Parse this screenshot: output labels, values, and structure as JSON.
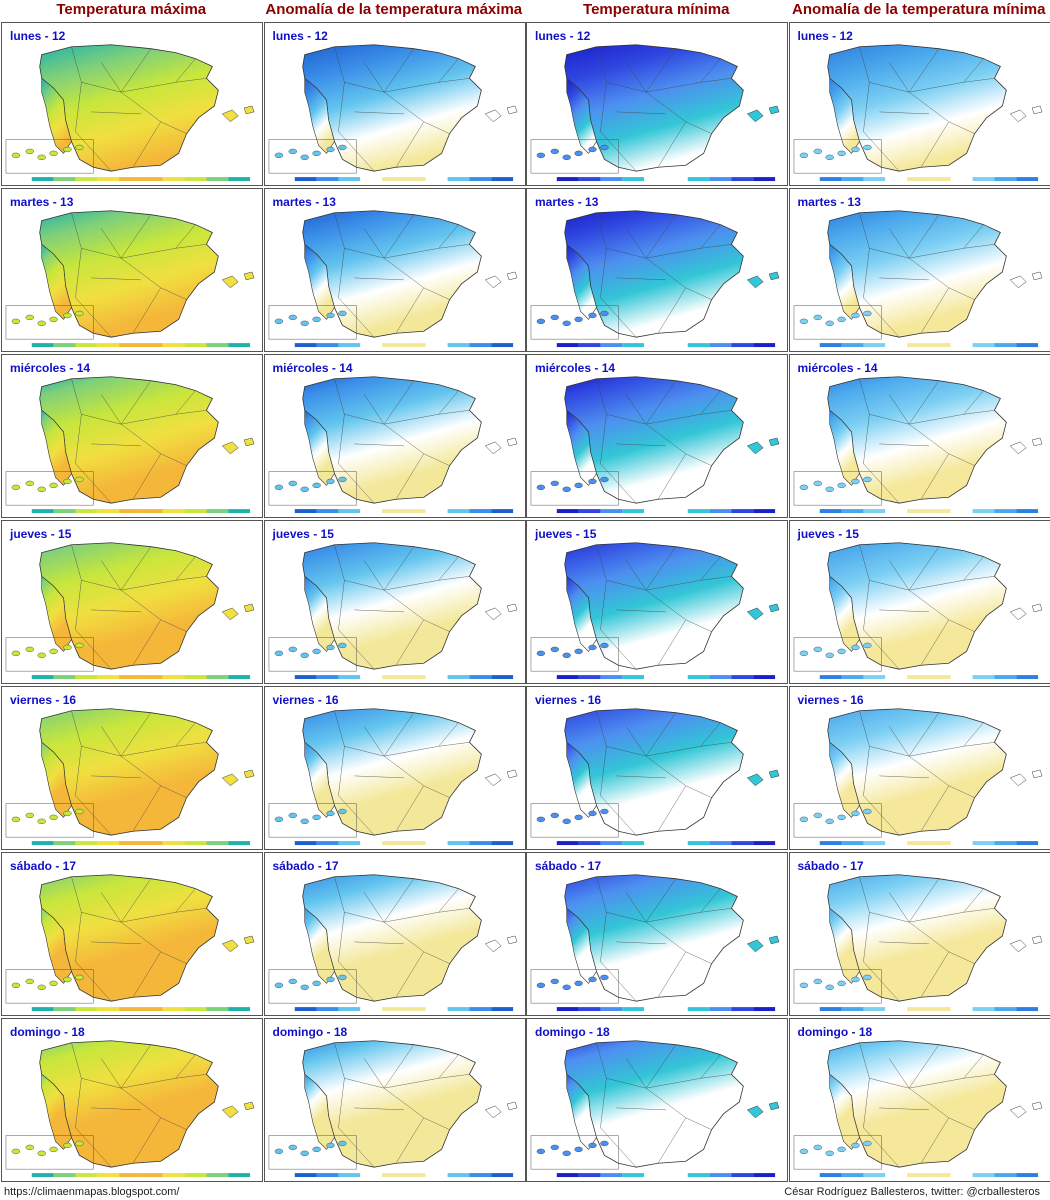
{
  "columns": [
    {
      "title": "Temperatura máxima",
      "palette": [
        "#20b2aa",
        "#7fd07a",
        "#c8e63c",
        "#f0e040",
        "#f5b73a"
      ],
      "kind": "tmax"
    },
    {
      "title": "Anomalía de la temperatura máxima",
      "palette": [
        "#1e5fd0",
        "#3a8ee8",
        "#63c5ee",
        "#ffffff",
        "#f3e89a"
      ],
      "kind": "anom_max"
    },
    {
      "title": "Temperatura mínima",
      "palette": [
        "#1a1fc8",
        "#2f46e0",
        "#4d8ff0",
        "#33c6d6",
        "#ffffff"
      ],
      "kind": "tmin"
    },
    {
      "title": "Anomalía de la temperatura mínima",
      "palette": [
        "#2f7fe0",
        "#4aa8ec",
        "#7dd0f3",
        "#ffffff",
        "#f5e89a"
      ],
      "kind": "anom_min"
    }
  ],
  "rows": [
    {
      "day": "lunes - 12"
    },
    {
      "day": "martes - 13"
    },
    {
      "day": "miércoles - 14"
    },
    {
      "day": "jueves - 15"
    },
    {
      "day": "viernes - 16"
    },
    {
      "day": "sábado - 17"
    },
    {
      "day": "domingo - 18"
    }
  ],
  "footer": {
    "left": "https://climaenmapas.blogspot.com/",
    "right": "César Rodríguez Ballesteros, twitter: @crballesteros"
  }
}
